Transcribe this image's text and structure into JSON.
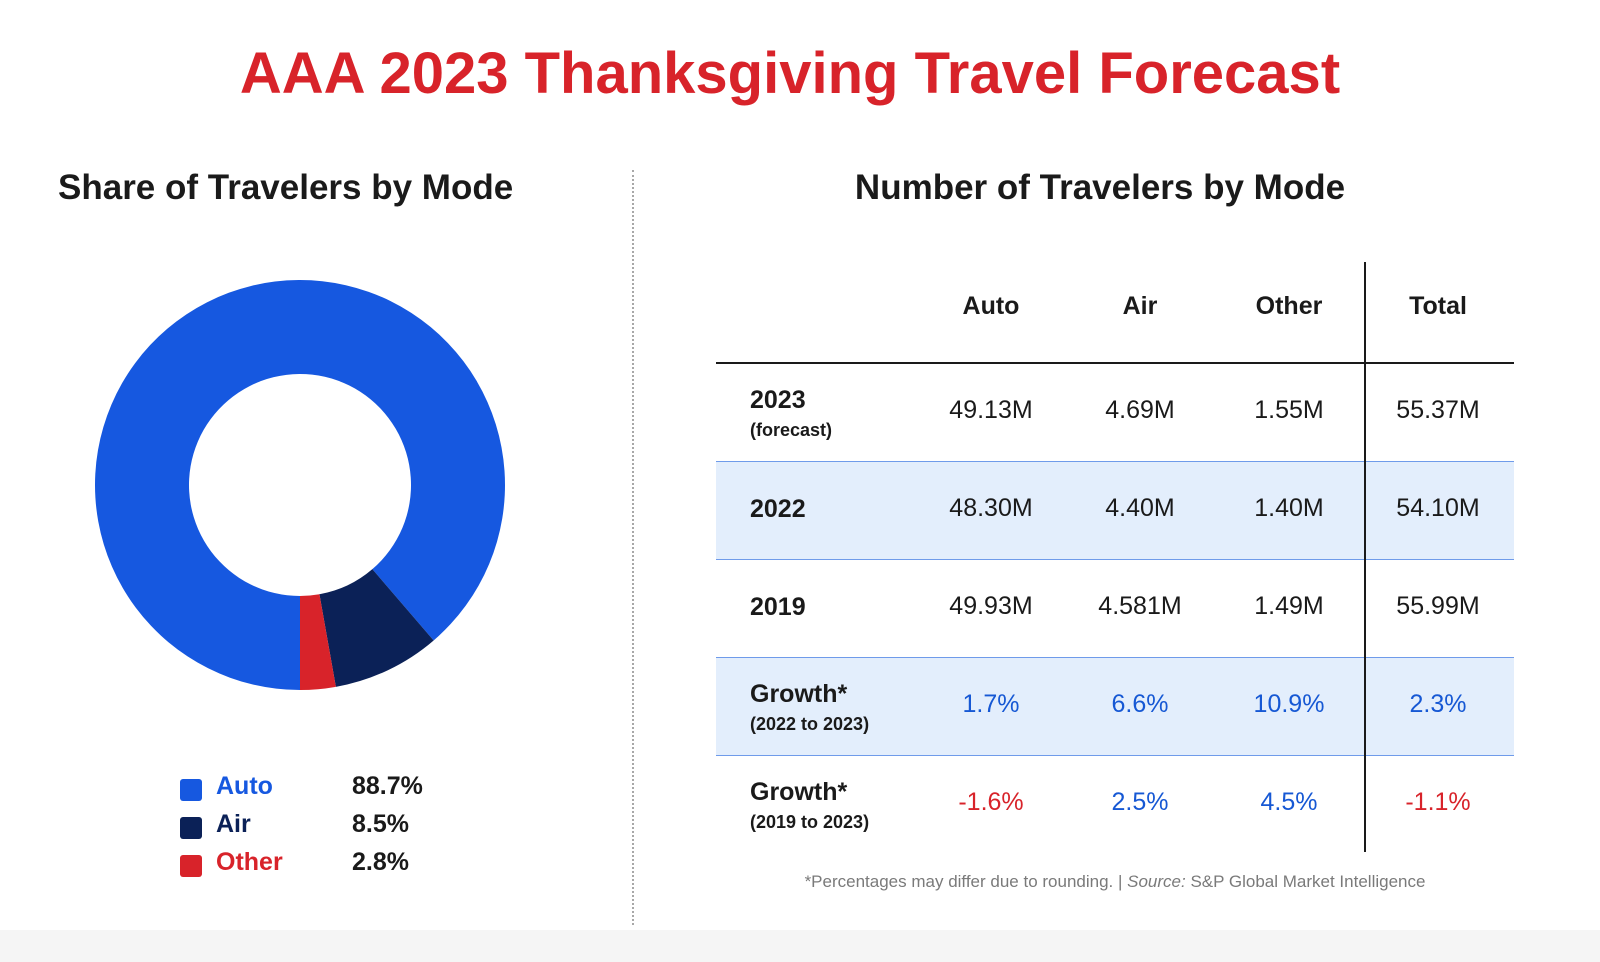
{
  "title": "AAA 2023 Thanksgiving Travel Forecast",
  "colors": {
    "accent": "#d8232a",
    "auto": "#1658e0",
    "air": "#0b2157",
    "other": "#d8232a",
    "shaded": "#e3eefc",
    "positive": "#1658d4",
    "negative": "#d8232a"
  },
  "left_panel": {
    "title": "Share of Travelers by Mode"
  },
  "right_panel": {
    "title": "Number of Travelers by Mode"
  },
  "chart_data": [
    {
      "type": "pie",
      "title": "Share of Travelers by Mode",
      "donut": true,
      "legend_position": "bottom",
      "slices": [
        {
          "label": "Auto",
          "value": 88.7,
          "display": "88.7%",
          "color": "#1658e0"
        },
        {
          "label": "Air",
          "value": 8.5,
          "display": "8.5%",
          "color": "#0b2157"
        },
        {
          "label": "Other",
          "value": 2.8,
          "display": "2.8%",
          "color": "#d8232a"
        }
      ]
    },
    {
      "type": "table",
      "title": "Number of Travelers by Mode",
      "columns": [
        "Auto",
        "Air",
        "Other",
        "Total"
      ],
      "rows": [
        {
          "label": "2023",
          "sublabel": "(forecast)",
          "cells": [
            "49.13M",
            "4.69M",
            "1.55M",
            "55.37M"
          ],
          "shaded": false,
          "tone": [
            "",
            "",
            "",
            ""
          ]
        },
        {
          "label": "2022",
          "sublabel": "",
          "cells": [
            "48.30M",
            "4.40M",
            "1.40M",
            "54.10M"
          ],
          "shaded": true,
          "tone": [
            "",
            "",
            "",
            ""
          ]
        },
        {
          "label": "2019",
          "sublabel": "",
          "cells": [
            "49.93M",
            "4.581M",
            "1.49M",
            "55.99M"
          ],
          "shaded": false,
          "tone": [
            "",
            "",
            "",
            ""
          ]
        },
        {
          "label": "Growth*",
          "sublabel": "(2022 to 2023)",
          "cells": [
            "1.7%",
            "6.6%",
            "10.9%",
            "2.3%"
          ],
          "shaded": true,
          "tone": [
            "pos",
            "pos",
            "pos",
            "pos"
          ]
        },
        {
          "label": "Growth*",
          "sublabel": "(2019 to 2023)",
          "cells": [
            "-1.6%",
            "2.5%",
            "4.5%",
            "-1.1%"
          ],
          "shaded": false,
          "tone": [
            "neg",
            "pos",
            "pos",
            "neg"
          ]
        }
      ]
    }
  ],
  "footnote": {
    "text": "*Percentages may differ due to rounding. | ",
    "source_label": "Source:",
    "source": " S&P Global Market Intelligence"
  }
}
